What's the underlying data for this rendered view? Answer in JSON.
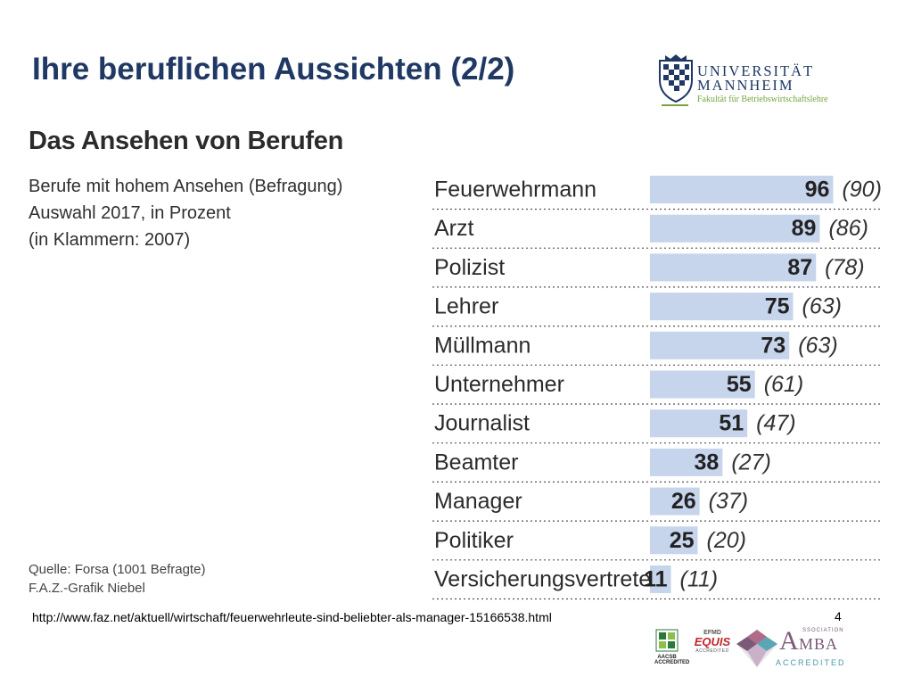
{
  "slide": {
    "title": "Ihre beruflichen Aussichten (2/2)",
    "footer_url": "http://www.faz.net/aktuell/wirtschaft/feuerwehrleute-sind-beliebter-als-manager-15166538.html",
    "page_number": "4"
  },
  "logo": {
    "line1": "UNIVERSITÄT",
    "line2": "MANNHEIM",
    "subtitle": "Fakultät für Betriebswirtschaftslehre"
  },
  "accreditations": {
    "aacsb": "AACSB ACCREDITED",
    "efmd": "EFMD",
    "equis": "EQUIS",
    "equis_sub": "ACCREDITED",
    "amba_a": "A",
    "amba_mba": "MBA",
    "amba_association": "SSOCIATION",
    "amba_accredited": "ACCREDITED"
  },
  "colors": {
    "title": "#1f3864",
    "bar": "#c6d4ec",
    "text": "#2b2b2b",
    "logo_green": "#77a33f"
  },
  "chart_data": {
    "type": "bar",
    "orientation": "horizontal",
    "title": "Das Ansehen von Berufen",
    "subtitle_lines": [
      "Berufe mit hohem Ansehen (Befragung)",
      "Auswahl 2017, in Prozent",
      "(in Klammern: 2007)"
    ],
    "source_lines": [
      "Quelle: Forsa (1001 Befragte)",
      "F.A.Z.-Grafik Niebel"
    ],
    "categories": [
      "Feuerwehrmann",
      "Arzt",
      "Polizist",
      "Lehrer",
      "Müllmann",
      "Unternehmer",
      "Journalist",
      "Beamter",
      "Manager",
      "Politiker",
      "Versicherungsvertreter"
    ],
    "series": [
      {
        "name": "2017",
        "values": [
          96,
          89,
          87,
          75,
          73,
          55,
          51,
          38,
          26,
          25,
          11
        ]
      },
      {
        "name": "2007",
        "values": [
          90,
          86,
          78,
          63,
          63,
          61,
          47,
          27,
          37,
          20,
          11
        ]
      }
    ],
    "xlim": [
      0,
      100
    ],
    "grid": false,
    "separators": "dotted"
  }
}
